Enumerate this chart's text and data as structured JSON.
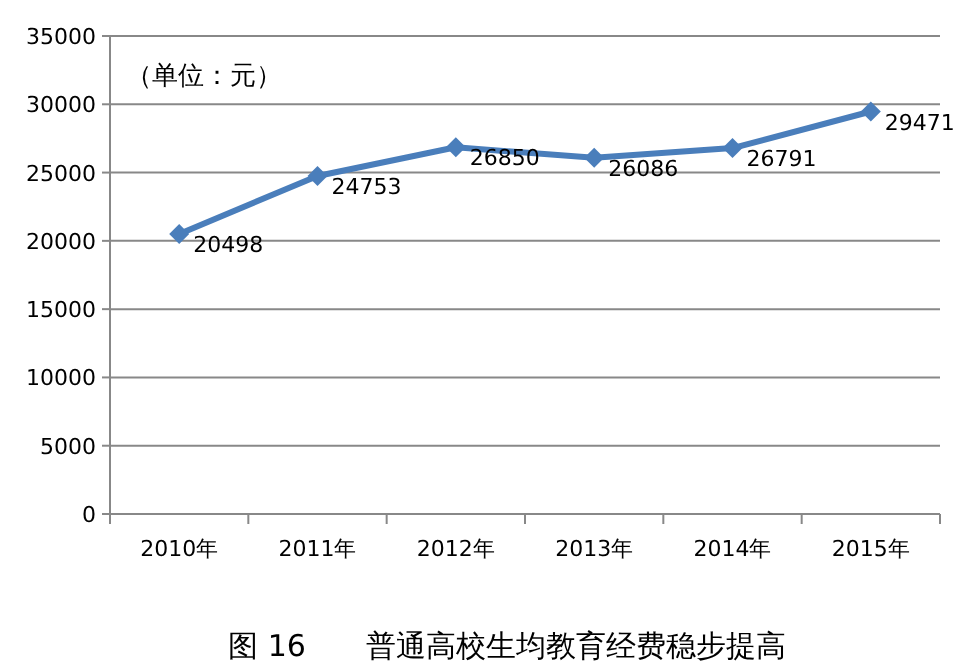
{
  "chart_data": {
    "type": "line",
    "title": "图 16　　普通高校生均教育经费稳步提高",
    "ylabel": "（单位：元）",
    "categories": [
      "2010年",
      "2011年",
      "2012年",
      "2013年",
      "2014年",
      "2015年"
    ],
    "series": [
      {
        "color": "#4a7ebb",
        "values": [
          20498,
          24753,
          26850,
          26086,
          26791,
          29471
        ]
      }
    ],
    "ylim": [
      0,
      35000
    ],
    "yticks": [
      0,
      5000,
      10000,
      15000,
      20000,
      25000,
      30000,
      35000
    ],
    "grid": "y",
    "marker": "diamond",
    "line_style": "solid",
    "data_labels": true
  }
}
